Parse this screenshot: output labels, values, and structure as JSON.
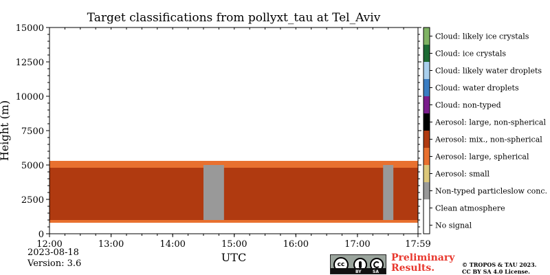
{
  "chart_data": {
    "type": "heatmap",
    "title": "Target classifications from pollyxt_tau at Tel_Aviv",
    "xlabel": "UTC",
    "ylabel": "Height (m)",
    "xlim": [
      "12:00",
      "17:59"
    ],
    "ylim": [
      0,
      15000
    ],
    "x_ticks": [
      "12:00",
      "13:00",
      "14:00",
      "15:00",
      "16:00",
      "17:00",
      "17:59"
    ],
    "y_ticks": [
      0,
      2500,
      5000,
      7500,
      10000,
      12500,
      15000
    ],
    "legend_position": "right",
    "classes": [
      {
        "label": "No signal",
        "color": "#ffffff"
      },
      {
        "label": "Clean atmosphere",
        "color": "#ffffff"
      },
      {
        "label": "Non-typed particleslow conc.",
        "color": "#999999"
      },
      {
        "label": "Aerosol: small",
        "color": "#dcc77a"
      },
      {
        "label": "Aerosol: large, spherical",
        "color": "#e8702f"
      },
      {
        "label": "Aerosol: mix., non-spherical",
        "color": "#b03a10"
      },
      {
        "label": "Aerosol: large, non-spherical",
        "color": "#000000"
      },
      {
        "label": "Cloud: non-typed",
        "color": "#7a1d8c"
      },
      {
        "label": "Cloud: water droplets",
        "color": "#3a7dc2"
      },
      {
        "label": "Cloud: likely water droplets",
        "color": "#a9cfed"
      },
      {
        "label": "Cloud: ice crystals",
        "color": "#1d6b34"
      },
      {
        "label": "Cloud: likely ice crystals",
        "color": "#7fb364"
      }
    ],
    "layers": [
      {
        "class": "Aerosol: large, spherical",
        "height_range_m": [
          800,
          1000
        ],
        "time_range": [
          "12:00",
          "17:59"
        ]
      },
      {
        "class": "Aerosol: mix., non-spherical",
        "height_range_m": [
          1000,
          4800
        ],
        "time_range": [
          "12:00",
          "17:59"
        ]
      },
      {
        "class": "Aerosol: large, spherical",
        "height_range_m": [
          4800,
          5300
        ],
        "time_range": [
          "12:00",
          "17:59"
        ]
      },
      {
        "class": "Non-typed particleslow conc.",
        "height_range_m": [
          1000,
          5000
        ],
        "time_range": [
          "14:30",
          "14:50"
        ]
      },
      {
        "class": "Non-typed particleslow conc.",
        "height_range_m": [
          1000,
          5000
        ],
        "time_range": [
          "17:25",
          "17:35"
        ]
      }
    ]
  },
  "date": "2023-08-18",
  "version": "Version: 3.6",
  "preliminary": "Preliminary\nResults.",
  "copyright": "© TROPOS & TAU 2023.\nCC BY SA 4.0 License.",
  "license_badge": {
    "icon": "cc-by-sa-icon",
    "cc": "cc",
    "by": "BY",
    "sa": "SA"
  }
}
